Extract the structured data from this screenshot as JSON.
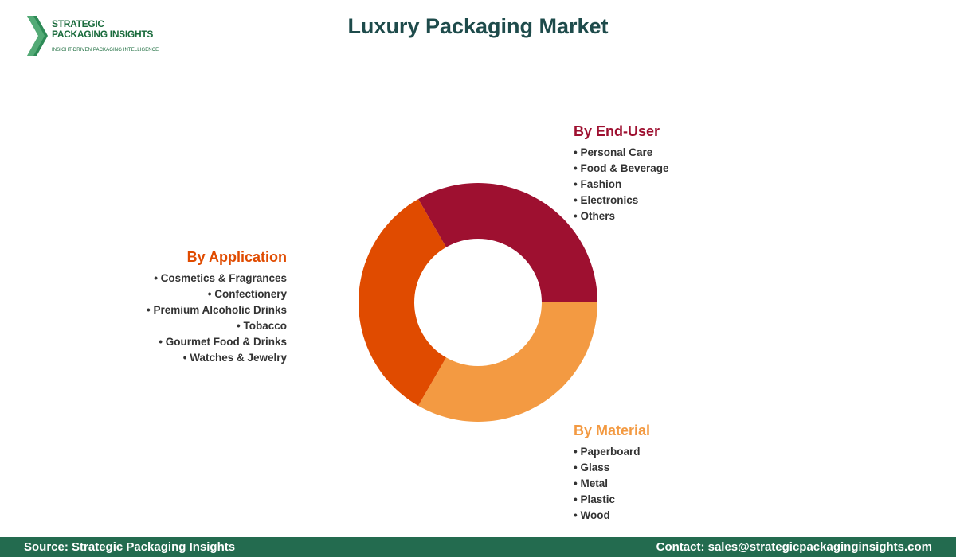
{
  "logo": {
    "line1": "STRATEGIC",
    "line2": "PACKAGING INSIGHTS",
    "tagline": "INSIGHT-DRIVEN PACKAGING INTELLIGENCE"
  },
  "colors": {
    "end_user": "#9e1030",
    "application": "#e04b00",
    "material": "#f39a42",
    "title": "#1e4b4b",
    "footer": "#236b4f"
  },
  "chart_data": {
    "type": "pie",
    "title": "Luxury Packaging Market",
    "donut": true,
    "slices": [
      {
        "name": "By End-User",
        "value": 1
      },
      {
        "name": "By Material",
        "value": 1
      },
      {
        "name": "By Application",
        "value": 1
      }
    ]
  },
  "segments": {
    "end_user": {
      "heading": "By End-User",
      "items": [
        "Personal Care",
        "Food & Beverage",
        "Fashion",
        "Electronics",
        "Others"
      ]
    },
    "application": {
      "heading": "By Application",
      "items": [
        "Cosmetics & Fragrances",
        "Confectionery",
        "Premium Alcoholic Drinks",
        "Tobacco",
        "Gourmet Food & Drinks",
        "Watches & Jewelry"
      ]
    },
    "material": {
      "heading": "By Material",
      "items": [
        "Paperboard",
        "Glass",
        "Metal",
        "Plastic",
        "Wood"
      ]
    }
  },
  "footer": {
    "source": "Source: Strategic Packaging Insights",
    "contact": "Contact: sales@strategicpackaginginsights.com"
  }
}
